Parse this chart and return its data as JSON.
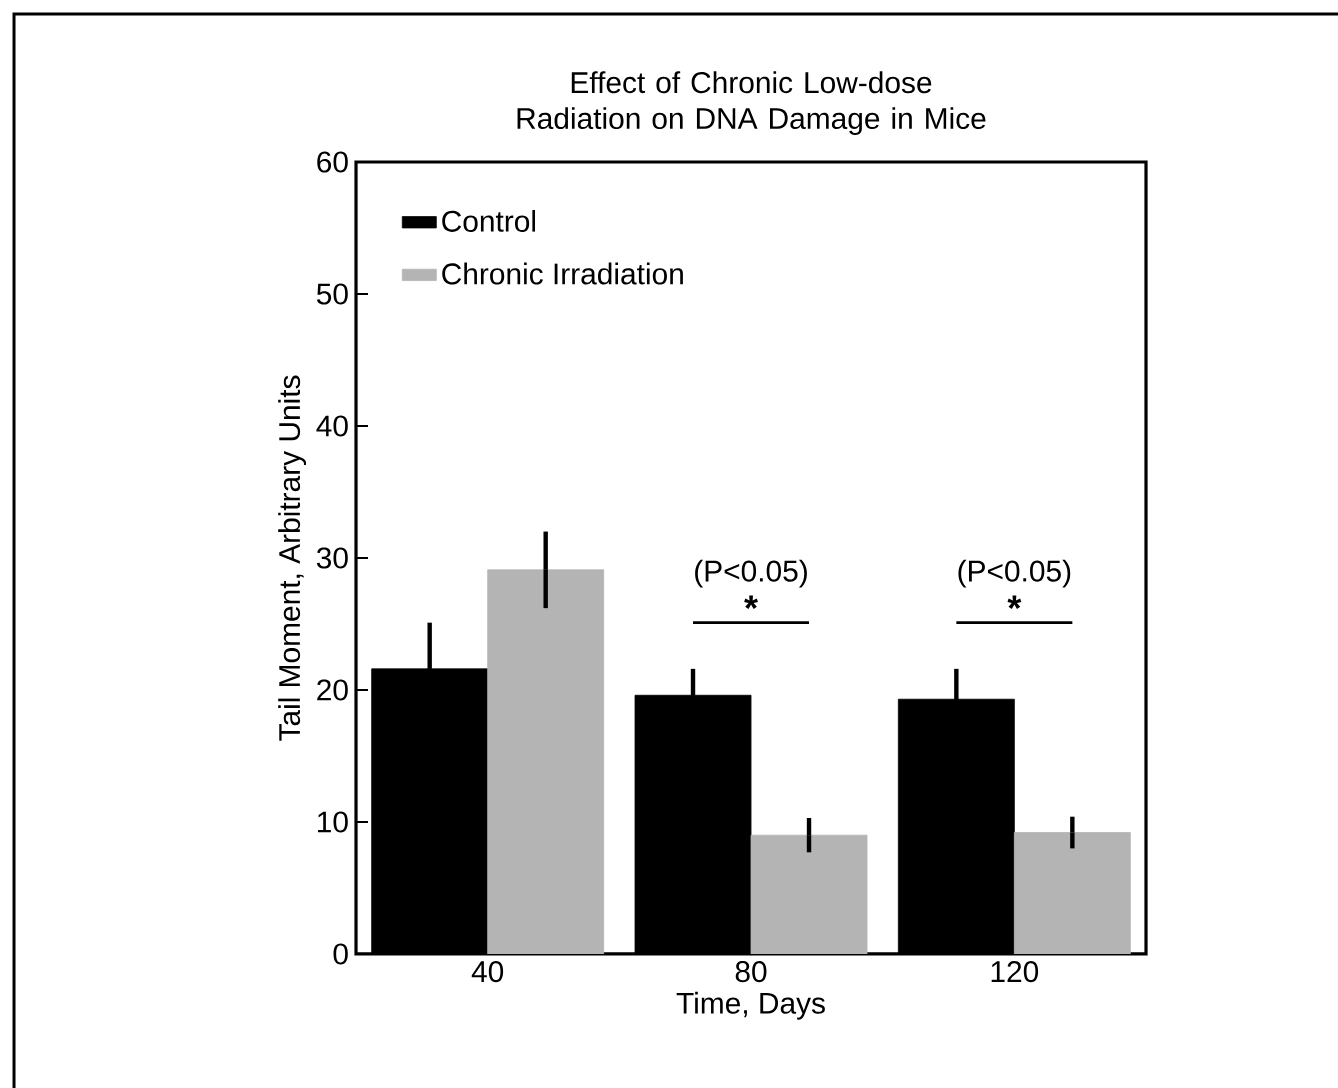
{
  "chart_data": {
    "type": "bar",
    "title": "Effect of Chronic Low-dose Radiation on DNA Damage in Mice",
    "xlabel": "Time, Days",
    "ylabel": "Tail Moment, Arbitrary Units",
    "categories": [
      "40",
      "80",
      "120"
    ],
    "series": [
      {
        "name": "Control",
        "color": "#000000",
        "values": [
          21.6,
          19.6,
          19.3
        ],
        "errors": [
          3.5,
          2.0,
          2.3
        ]
      },
      {
        "name": "Chronic Irradiation",
        "color": "#b4b4b4",
        "values": [
          29.1,
          9.0,
          9.2
        ],
        "errors": [
          2.9,
          1.3,
          1.2
        ]
      }
    ],
    "ylim": [
      0,
      60
    ],
    "yticks": [
      0,
      10,
      20,
      30,
      40,
      50,
      60
    ],
    "grid": false,
    "legend": "top left",
    "annotations": [
      "(P<0.05)",
      "*",
      "(P<0.05)",
      "*"
    ]
  }
}
